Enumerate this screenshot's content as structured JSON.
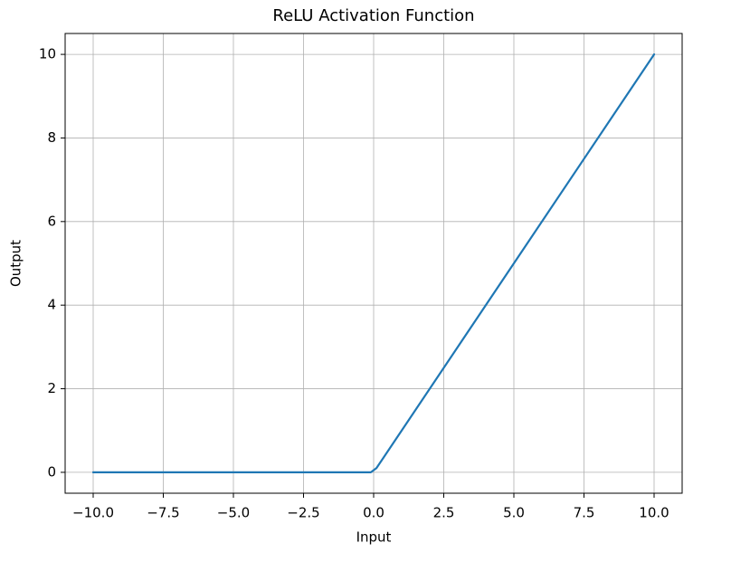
{
  "chart_data": {
    "type": "line",
    "title": "ReLU Activation Function",
    "xlabel": "Input",
    "ylabel": "Output",
    "x": [
      -10,
      -0.1,
      0.1,
      10
    ],
    "series": [
      {
        "name": "ReLU",
        "color": "#1f77b4",
        "values": [
          0,
          0,
          0.1,
          10
        ]
      }
    ],
    "xlim": [
      -11,
      11
    ],
    "xticks": [
      {
        "value": -10,
        "label": "−10.0"
      },
      {
        "value": -7.5,
        "label": "−7.5"
      },
      {
        "value": -5,
        "label": "−5.0"
      },
      {
        "value": -2.5,
        "label": "−2.5"
      },
      {
        "value": 0,
        "label": "0.0"
      },
      {
        "value": 2.5,
        "label": "2.5"
      },
      {
        "value": 5,
        "label": "5.0"
      },
      {
        "value": 7.5,
        "label": "7.5"
      },
      {
        "value": 10,
        "label": "10.0"
      }
    ],
    "ylim": [
      -0.5,
      10.5
    ],
    "yticks": [
      0,
      2,
      4,
      6,
      8,
      10
    ],
    "grid": true
  }
}
